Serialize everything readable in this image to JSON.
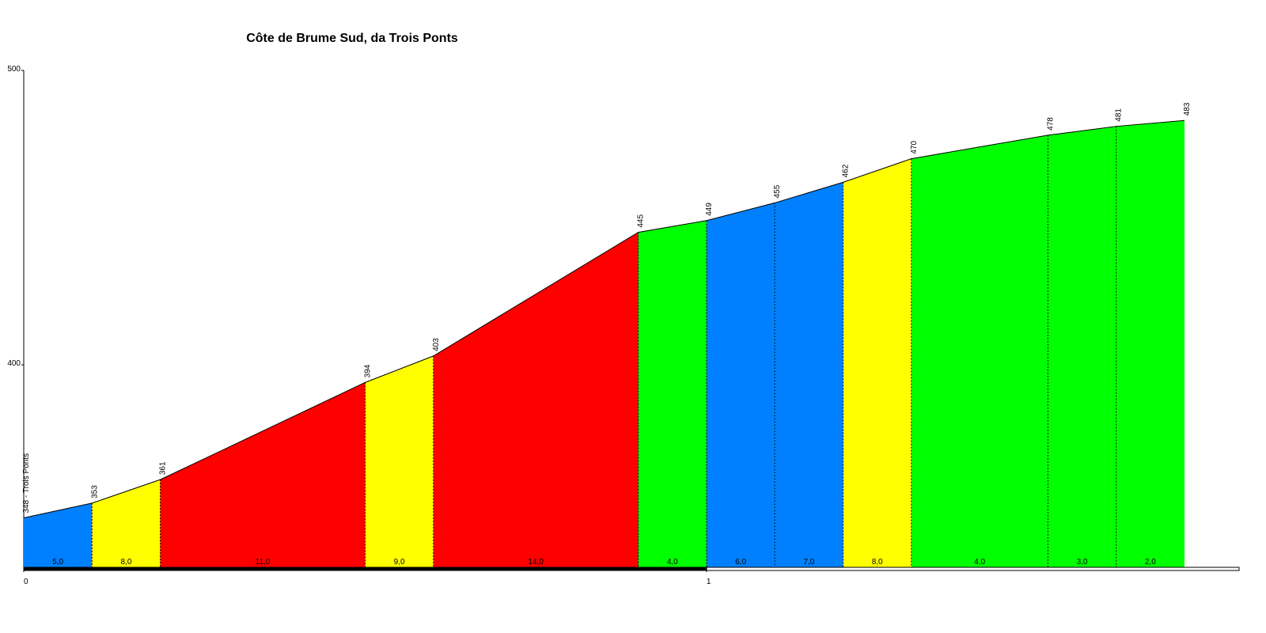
{
  "chart_data": {
    "type": "area",
    "title": "Côte de Brume Sud, da Trois Ponts",
    "x": [
      0,
      0.1,
      0.2,
      0.5,
      0.6,
      0.9,
      1.0,
      1.1,
      1.2,
      1.3,
      1.5,
      1.6,
      1.7
    ],
    "values": [
      348,
      353,
      361,
      394,
      403,
      445,
      449,
      455,
      462,
      470,
      478,
      481,
      483
    ],
    "value_labels": [
      "348 - Trois Ponts",
      "353",
      "361",
      "394",
      "403",
      "445",
      "449",
      "455",
      "462",
      "470",
      "478",
      "481",
      "483"
    ],
    "segments": {
      "grades": [
        5,
        8,
        11,
        9,
        14,
        4,
        6,
        7,
        8,
        4,
        3,
        2
      ],
      "grade_labels": [
        "5,0",
        "8,0",
        "11,0",
        "9,0",
        "14,0",
        "4,0",
        "6,0",
        "7,0",
        "8,0",
        "4,0",
        "3,0",
        "2,0"
      ],
      "colors": [
        "#0080ff",
        "#ffff00",
        "#ff0000",
        "#ffff00",
        "#ff0000",
        "#00ff00",
        "#0080ff",
        "#0080ff",
        "#ffff00",
        "#00ff00",
        "#00ff00",
        "#00ff00"
      ]
    },
    "xlim": [
      0,
      1.78
    ],
    "xticks": [
      0,
      1
    ],
    "ylim": [
      331.2,
      500
    ],
    "yticks": [
      400,
      500
    ]
  }
}
